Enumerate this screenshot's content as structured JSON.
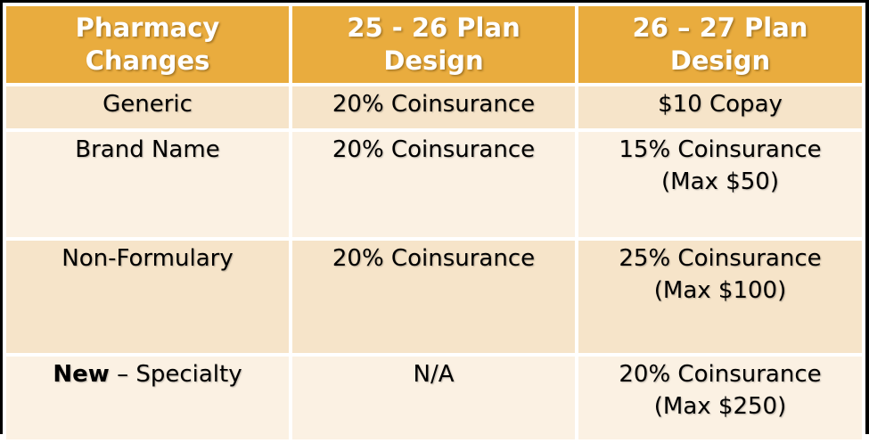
{
  "colors": {
    "header_bg": "#E9AC3E",
    "header_text": "#FFFFFF",
    "row_band_dark": "#F6E4C9",
    "row_band_light": "#FBF1E3",
    "body_text": "#000000",
    "frame": "#000000",
    "grid_gap": "#FFFFFF"
  },
  "table": {
    "columns": [
      {
        "label": "Pharmacy Changes"
      },
      {
        "label": "25 - 26 Plan Design"
      },
      {
        "label": "26 – 27 Plan Design"
      }
    ],
    "rows": [
      {
        "category_bold": "",
        "category": "Generic",
        "plan_25_26": "20% Coinsurance",
        "plan_26_27": "$10 Copay"
      },
      {
        "category_bold": "",
        "category": "Brand Name",
        "plan_25_26": "20% Coinsurance",
        "plan_26_27": "15% Coinsurance (Max $50)"
      },
      {
        "category_bold": "",
        "category": "Non-Formulary",
        "plan_25_26": "20% Coinsurance",
        "plan_26_27": "25% Coinsurance (Max $100)"
      },
      {
        "category_bold": "New",
        "category": " – Specialty",
        "plan_25_26": "N/A",
        "plan_26_27": "20% Coinsurance (Max $250)"
      }
    ]
  }
}
